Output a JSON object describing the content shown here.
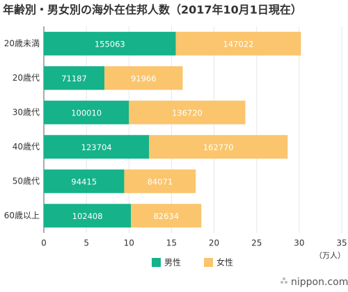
{
  "chart_data": {
    "type": "bar",
    "orientation": "horizontal",
    "stacked": true,
    "title": "年齢別・男女別の海外在住邦人数（2017年10月1日現在）",
    "categories": [
      "20歳未満",
      "20歳代",
      "30歳代",
      "40歳代",
      "50歳代",
      "60歳以上"
    ],
    "series": [
      {
        "name": "男性",
        "color": "#16b28a",
        "values": [
          15.5063,
          7.1187,
          10.001,
          12.3704,
          9.4415,
          10.2408
        ],
        "value_labels": [
          "155063",
          "71187",
          "100010",
          "123704",
          "94415",
          "102408"
        ]
      },
      {
        "name": "女性",
        "color": "#fac56d",
        "values": [
          14.7022,
          9.1966,
          13.672,
          16.277,
          8.4071,
          8.2634
        ],
        "value_labels": [
          "147022",
          "91966",
          "136720",
          "162770",
          "84071",
          "82634"
        ]
      }
    ],
    "xlim": [
      0,
      35
    ],
    "xticks": [
      0,
      5,
      10,
      15,
      20,
      25,
      30,
      35
    ],
    "grid": true,
    "unit_label": "（万人）",
    "legend": "bottom",
    "source": "nippon.com"
  }
}
